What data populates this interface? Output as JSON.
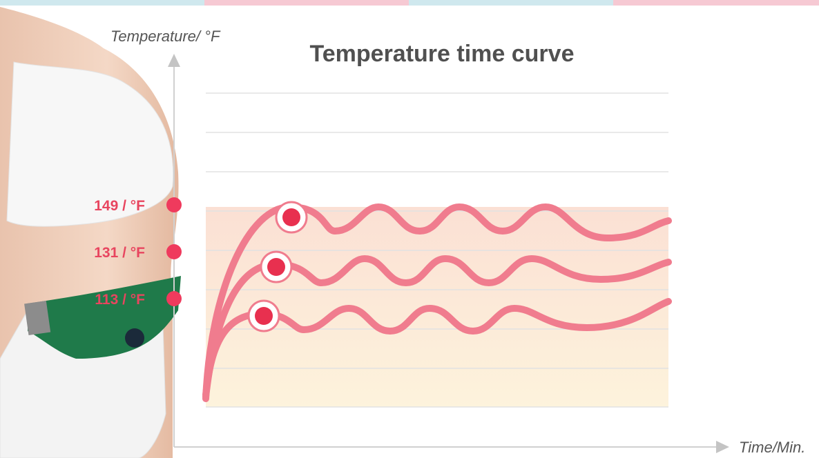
{
  "title": "Temperature time curve",
  "y_axis_label": "Temperature/ °F",
  "x_axis_label": "Time/Min.",
  "markers": [
    {
      "label": "149 / °F"
    },
    {
      "label": "131 / °F"
    },
    {
      "label": "113 / °F"
    }
  ]
}
